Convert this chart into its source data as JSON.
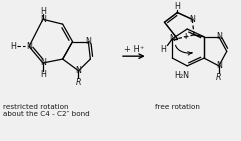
{
  "bg_color": "#f0f0f0",
  "text_color": "#1a1a1a",
  "left_label_line1": "restricted rotation",
  "left_label_line2": "about the C4 - C2″ bond",
  "right_label": "free rotation",
  "reaction_label": "+ H⁺",
  "fig_width": 2.41,
  "fig_height": 1.41,
  "dpi": 100
}
